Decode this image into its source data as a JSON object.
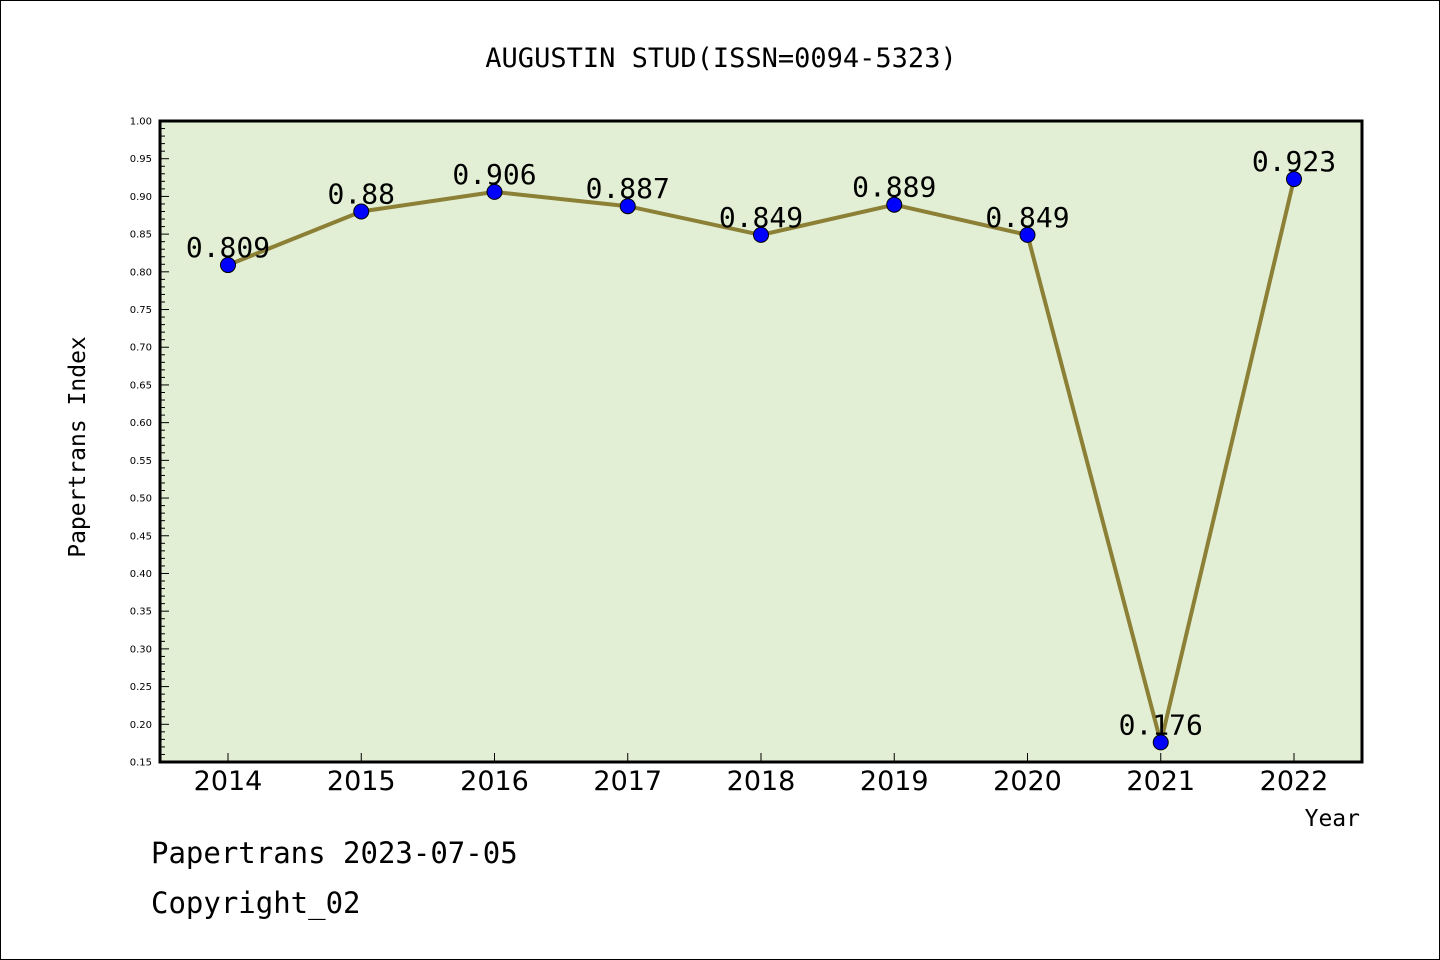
{
  "chart_data": {
    "type": "line",
    "title": "AUGUSTIN STUD(ISSN=0094-5323)",
    "xlabel": "Year",
    "ylabel": "Papertrans Index",
    "categories": [
      "2014",
      "2015",
      "2016",
      "2017",
      "2018",
      "2019",
      "2020",
      "2021",
      "2022"
    ],
    "series": [
      {
        "values": [
          0.809,
          0.88,
          0.906,
          0.887,
          0.849,
          0.889,
          0.849,
          0.176,
          0.923
        ],
        "data_labels": [
          "0.809",
          "0.88",
          "0.906",
          "0.887",
          "0.849",
          "0.889",
          "0.849",
          "0.176",
          "0.923"
        ]
      }
    ],
    "ylim": [
      0.15,
      1.0
    ],
    "yticks": [
      "0.15",
      "0.20",
      "0.25",
      "0.30",
      "0.35",
      "0.40",
      "0.45",
      "0.50",
      "0.55",
      "0.60",
      "0.65",
      "0.70",
      "0.75",
      "0.80",
      "0.85",
      "0.90",
      "0.95",
      "1.00"
    ],
    "grid": false,
    "legend": "none",
    "colors": {
      "plot_background": "#e2efd5",
      "line": "#8b8035",
      "marker": "#0000ff"
    }
  },
  "footer": {
    "line1": "Papertrans 2023-07-05",
    "line2": "Copyright_02"
  }
}
